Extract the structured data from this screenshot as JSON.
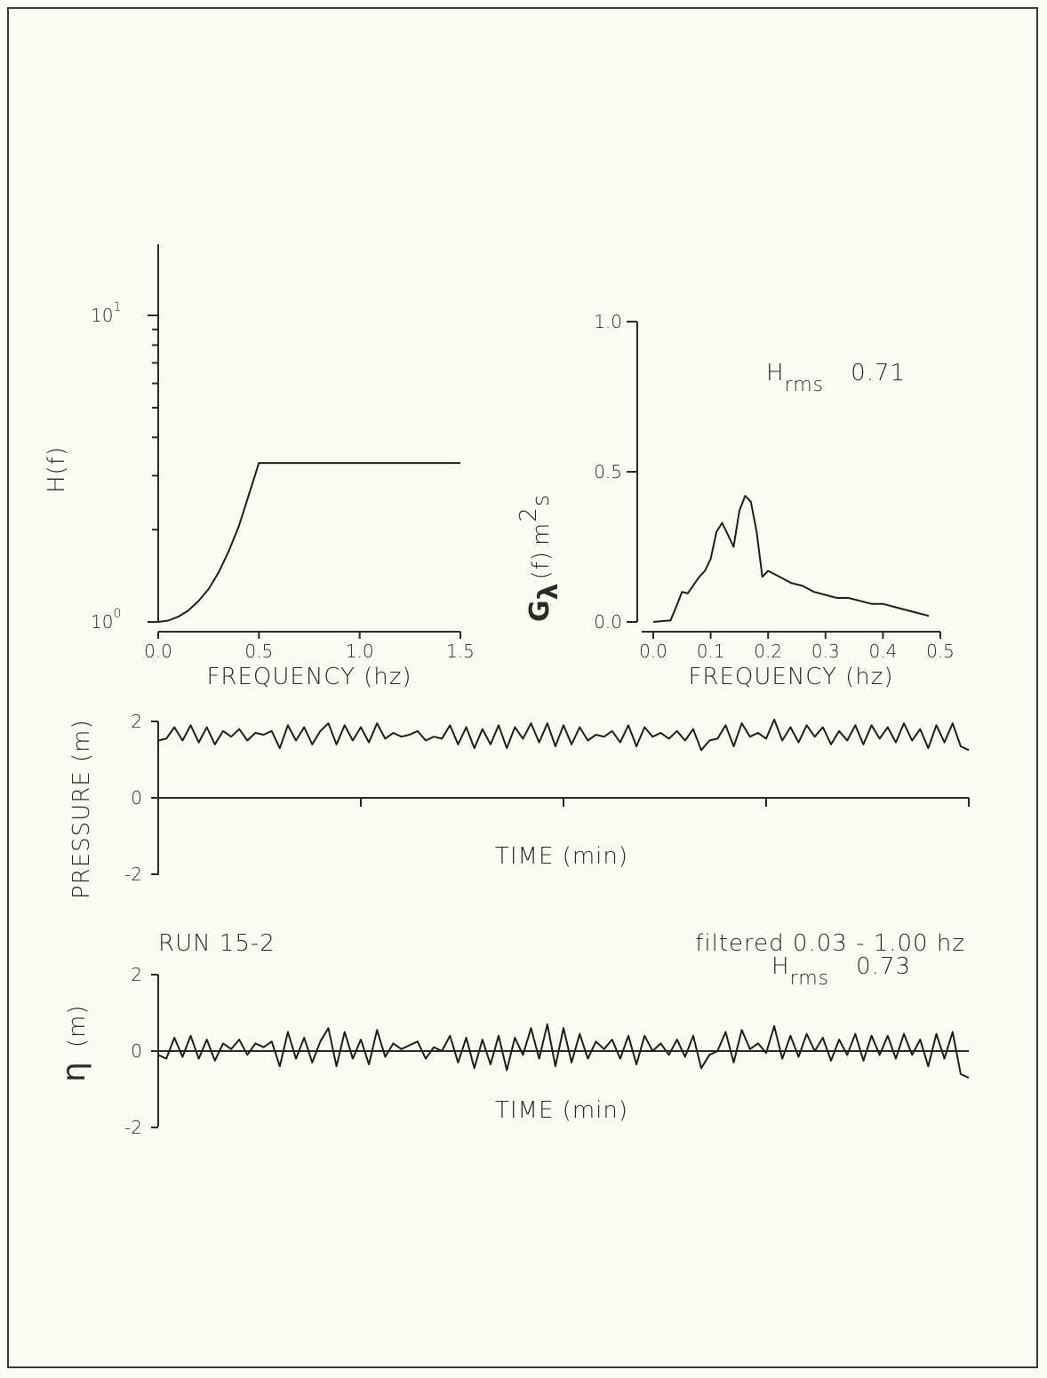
{
  "chart_data": [
    {
      "type": "line",
      "id": "transfer",
      "xlabel": "FREQUENCY (hz)",
      "ylabel": "H(f)",
      "xlim": [
        0.0,
        1.5
      ],
      "ylim": [
        1,
        10
      ],
      "yscale": "log",
      "x_ticks": [
        "0.0",
        "0.5",
        "1.0",
        "1.5"
      ],
      "y_tick_labels": [
        {
          "base": "10",
          "exp": "1"
        },
        {
          "base": "10",
          "exp": "0"
        }
      ],
      "x": [
        0.0,
        0.05,
        0.1,
        0.15,
        0.2,
        0.25,
        0.3,
        0.35,
        0.4,
        0.45,
        0.5,
        1.5
      ],
      "y": [
        1.0,
        1.01,
        1.04,
        1.09,
        1.17,
        1.28,
        1.45,
        1.7,
        2.05,
        2.6,
        3.3,
        3.3
      ]
    },
    {
      "type": "line",
      "id": "spectrum",
      "xlabel": "FREQUENCY (hz)",
      "ylabel": {
        "main": "G",
        "sub": "λ",
        "paren": "(f)",
        "unit_base": "m",
        "unit_exp": "2",
        "unit_tail": "s"
      },
      "xlim": [
        0.0,
        0.5
      ],
      "ylim": [
        0.0,
        1.0
      ],
      "x_ticks": [
        "0.0",
        "0.1",
        "0.2",
        "0.3",
        "0.4",
        "0.5"
      ],
      "y_ticks": [
        "0.0",
        "0.5",
        "1.0"
      ],
      "annotation": {
        "symbol": "H",
        "sub": "rms",
        "value": "0.71"
      },
      "x": [
        0.0,
        0.03,
        0.04,
        0.05,
        0.06,
        0.08,
        0.09,
        0.1,
        0.11,
        0.12,
        0.13,
        0.14,
        0.15,
        0.16,
        0.17,
        0.18,
        0.19,
        0.2,
        0.22,
        0.24,
        0.26,
        0.28,
        0.3,
        0.32,
        0.34,
        0.36,
        0.38,
        0.4,
        0.42,
        0.44,
        0.46,
        0.48
      ],
      "y": [
        0.0,
        0.005,
        0.05,
        0.1,
        0.095,
        0.15,
        0.17,
        0.21,
        0.3,
        0.33,
        0.29,
        0.25,
        0.37,
        0.42,
        0.4,
        0.3,
        0.15,
        0.17,
        0.15,
        0.13,
        0.12,
        0.1,
        0.09,
        0.08,
        0.08,
        0.07,
        0.06,
        0.06,
        0.05,
        0.04,
        0.03,
        0.02
      ]
    },
    {
      "type": "line",
      "id": "pressure",
      "xlabel": "TIME (min)",
      "ylabel": "PRESSURE (m)",
      "ylim": [
        -2,
        2
      ],
      "y_ticks": [
        "2",
        "0",
        "-2"
      ],
      "x_tick_count": 4,
      "x": [
        0,
        0.3,
        0.6,
        0.9,
        1.2,
        1.5,
        1.8,
        2.1,
        2.4,
        2.7,
        3.0,
        3.3,
        3.6,
        3.9,
        4.2,
        4.5,
        4.8,
        5.1,
        5.4,
        5.7,
        6.0,
        6.3,
        6.6,
        6.9,
        7.2,
        7.5,
        7.8,
        8.1,
        8.4,
        8.7,
        9.0,
        9.3,
        9.6,
        9.9,
        10.2,
        10.5,
        10.8,
        11.1,
        11.4,
        11.7,
        12.0,
        12.3,
        12.6,
        12.9,
        13.2,
        13.5,
        13.8,
        14.1,
        14.4,
        14.7,
        15.0,
        15.3,
        15.6,
        15.9,
        16.2,
        16.5,
        16.8,
        17.1,
        17.4,
        17.7,
        18.0,
        18.3,
        18.6,
        18.9,
        19.2,
        19.5,
        19.8,
        20.1,
        20.4,
        20.7,
        21.0,
        21.3,
        21.6,
        21.9,
        22.2,
        22.5,
        22.8,
        23.1,
        23.4,
        23.7,
        24.0,
        24.3,
        24.6,
        24.9,
        25.2,
        25.5,
        25.8,
        26.1,
        26.4,
        26.7,
        27.0,
        27.3,
        27.6,
        27.9,
        28.2,
        28.5,
        28.8,
        29.1,
        29.4,
        29.7,
        30.0
      ],
      "y": [
        1.5,
        1.55,
        1.85,
        1.5,
        1.9,
        1.45,
        1.85,
        1.4,
        1.75,
        1.6,
        1.8,
        1.5,
        1.7,
        1.65,
        1.75,
        1.3,
        1.9,
        1.5,
        1.85,
        1.4,
        1.75,
        1.95,
        1.4,
        1.9,
        1.5,
        1.85,
        1.45,
        1.95,
        1.55,
        1.7,
        1.6,
        1.65,
        1.75,
        1.5,
        1.6,
        1.55,
        1.9,
        1.4,
        1.85,
        1.3,
        1.8,
        1.4,
        1.9,
        1.3,
        1.85,
        1.55,
        1.95,
        1.45,
        1.95,
        1.35,
        1.9,
        1.4,
        1.85,
        1.5,
        1.65,
        1.6,
        1.75,
        1.45,
        1.9,
        1.35,
        1.85,
        1.6,
        1.7,
        1.55,
        1.75,
        1.5,
        1.8,
        1.25,
        1.5,
        1.55,
        1.9,
        1.35,
        1.95,
        1.6,
        1.7,
        1.55,
        2.05,
        1.5,
        1.85,
        1.45,
        1.9,
        1.6,
        1.85,
        1.4,
        1.75,
        1.5,
        1.9,
        1.4,
        1.9,
        1.55,
        1.85,
        1.45,
        1.95,
        1.5,
        1.8,
        1.3,
        1.9,
        1.45,
        1.95,
        1.35,
        1.25
      ]
    },
    {
      "type": "line",
      "id": "eta",
      "xlabel": "TIME (min)",
      "ylabel": {
        "symbol": "η",
        "unit": "(m)"
      },
      "ylim": [
        -2,
        2
      ],
      "y_ticks": [
        "2",
        "0",
        "-2"
      ],
      "run_label": "RUN 15-2",
      "filter_label": "filtered  0.03 -  1.00 hz",
      "annotation": {
        "symbol": "H",
        "sub": "rms",
        "value": "0.73"
      },
      "x": [
        0,
        0.3,
        0.6,
        0.9,
        1.2,
        1.5,
        1.8,
        2.1,
        2.4,
        2.7,
        3.0,
        3.3,
        3.6,
        3.9,
        4.2,
        4.5,
        4.8,
        5.1,
        5.4,
        5.7,
        6.0,
        6.3,
        6.6,
        6.9,
        7.2,
        7.5,
        7.8,
        8.1,
        8.4,
        8.7,
        9.0,
        9.3,
        9.6,
        9.9,
        10.2,
        10.5,
        10.8,
        11.1,
        11.4,
        11.7,
        12.0,
        12.3,
        12.6,
        12.9,
        13.2,
        13.5,
        13.8,
        14.1,
        14.4,
        14.7,
        15.0,
        15.3,
        15.6,
        15.9,
        16.2,
        16.5,
        16.8,
        17.1,
        17.4,
        17.7,
        18.0,
        18.3,
        18.6,
        18.9,
        19.2,
        19.5,
        19.8,
        20.1,
        20.4,
        20.7,
        21.0,
        21.3,
        21.6,
        21.9,
        22.2,
        22.5,
        22.8,
        23.1,
        23.4,
        23.7,
        24.0,
        24.3,
        24.6,
        24.9,
        25.2,
        25.5,
        25.8,
        26.1,
        26.4,
        26.7,
        27.0,
        27.3,
        27.6,
        27.9,
        28.2,
        28.5,
        28.8,
        29.1,
        29.4,
        29.7,
        30.0
      ],
      "y": [
        -0.1,
        -0.2,
        0.35,
        -0.15,
        0.4,
        -0.2,
        0.3,
        -0.25,
        0.2,
        0.05,
        0.3,
        -0.1,
        0.2,
        0.1,
        0.25,
        -0.4,
        0.5,
        -0.2,
        0.35,
        -0.3,
        0.25,
        0.6,
        -0.4,
        0.5,
        -0.2,
        0.3,
        -0.35,
        0.55,
        -0.15,
        0.2,
        0.05,
        0.15,
        0.25,
        -0.2,
        0.1,
        0.0,
        0.4,
        -0.3,
        0.35,
        -0.45,
        0.3,
        -0.35,
        0.4,
        -0.5,
        0.35,
        -0.1,
        0.6,
        -0.2,
        0.7,
        -0.4,
        0.6,
        -0.3,
        0.45,
        -0.2,
        0.25,
        0.05,
        0.3,
        -0.2,
        0.4,
        -0.35,
        0.4,
        0.0,
        0.2,
        -0.1,
        0.3,
        -0.15,
        0.4,
        -0.45,
        -0.1,
        0.0,
        0.5,
        -0.3,
        0.55,
        0.05,
        0.2,
        -0.05,
        0.65,
        -0.2,
        0.4,
        -0.15,
        0.45,
        0.0,
        0.35,
        -0.25,
        0.3,
        -0.1,
        0.45,
        -0.25,
        0.4,
        -0.1,
        0.4,
        -0.2,
        0.45,
        -0.1,
        0.3,
        -0.4,
        0.45,
        -0.2,
        0.5,
        -0.6,
        -0.7
      ]
    }
  ]
}
